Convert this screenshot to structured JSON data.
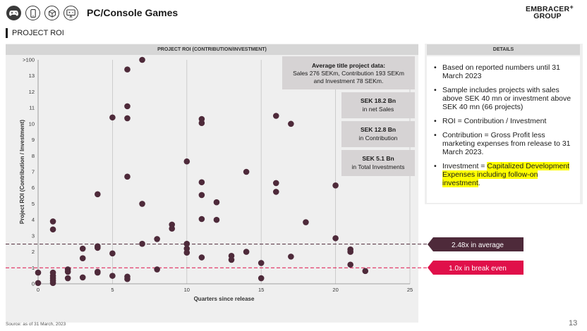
{
  "header": {
    "title": "PC/Console Games",
    "icons": [
      "gamepad-icon",
      "mobile-icon",
      "cube-icon",
      "monitor-icon"
    ],
    "logo_line1": "EMBRACER",
    "logo_line2": "GROUP",
    "logo_mark": "+"
  },
  "section": {
    "title": "PROJECT ROI"
  },
  "chart_header": "PROJECT ROI (CONTRIBUTION/INVESTMENT)",
  "details": {
    "header": "DETAILS",
    "bullets": [
      "Based on reported numbers until 31 March 2023",
      "Sample includes projects with sales above SEK 40 mn or investment above SEK 40 mn (66 projects)",
      "ROI = Contribution / Investment",
      "Contribution = Gross Profit less marketing expenses from release to 31 March 2023."
    ],
    "investment_prefix": "Investment = ",
    "investment_highlight": "Capitalized Development Expenses including follow-on investment",
    "investment_suffix": "."
  },
  "annotations": {
    "average_box": {
      "title": "Average title project data:",
      "line1": "Sales 276 SEKm, Contribution 193 SEKm",
      "line2": "and Investment 78 SEKm."
    },
    "sales_box": {
      "value": "SEK 18.2 Bn",
      "label": "in net Sales"
    },
    "contribution_box": {
      "value": "SEK 12.8 Bn",
      "label": "in Contribution"
    },
    "investment_box": {
      "value": "SEK 5.1 Bn",
      "label": "in Total Investments"
    },
    "average_label": "2.48x in average",
    "breakeven_label": "1.0x in break even"
  },
  "colors": {
    "dot": "#4e2a3a",
    "average_line": "#4e2a3a",
    "breakeven_line": "#e0104a",
    "average_tag": "#4e2a3a",
    "breakeven_tag": "#e0104a",
    "info_box": "#d6d3d4"
  },
  "chart_data": {
    "type": "scatter",
    "title": "PROJECT ROI (CONTRIBUTION/INVESTMENT)",
    "xlabel": "Quarters since release",
    "ylabel": "Project ROI (Contribution / Investment)",
    "xlim": [
      0,
      25
    ],
    "ylim": [
      0,
      14
    ],
    "x_ticks": [
      0,
      5,
      10,
      15,
      20,
      25
    ],
    "y_ticks": [
      0,
      1,
      2,
      3,
      4,
      5,
      6,
      7,
      8,
      9,
      10,
      11,
      12,
      13,
      14
    ],
    "y_tick_labels": [
      "0",
      "1",
      "2",
      "3",
      "4",
      "5",
      "6",
      "7",
      "8",
      "9",
      "10",
      "11",
      "12",
      "13",
      ">100"
    ],
    "grid": "vertical",
    "reference_lines": [
      {
        "label": "2.48x in average",
        "y": 2.48
      },
      {
        "label": "1.0x in break even",
        "y": 1.0
      }
    ],
    "points": [
      [
        0,
        0.7
      ],
      [
        0,
        0.05
      ],
      [
        1,
        3.9
      ],
      [
        1,
        3.4
      ],
      [
        1,
        0.7
      ],
      [
        1,
        0.5
      ],
      [
        1,
        0.35
      ],
      [
        1,
        0.2
      ],
      [
        1,
        0.05
      ],
      [
        2,
        0.9
      ],
      [
        2,
        0.75
      ],
      [
        2,
        0.35
      ],
      [
        3,
        2.2
      ],
      [
        3,
        1.6
      ],
      [
        3,
        0.4
      ],
      [
        4,
        5.6
      ],
      [
        4,
        2.35
      ],
      [
        4,
        2.25
      ],
      [
        4,
        0.75
      ],
      [
        4,
        0.7
      ],
      [
        5,
        10.4
      ],
      [
        5,
        1.9
      ],
      [
        5,
        0.5
      ],
      [
        6,
        13.4
      ],
      [
        6,
        11.1
      ],
      [
        6,
        10.35
      ],
      [
        6,
        6.7
      ],
      [
        6,
        0.45
      ],
      [
        6,
        0.3
      ],
      [
        7,
        14
      ],
      [
        7,
        5.0
      ],
      [
        7,
        2.5
      ],
      [
        8,
        2.8
      ],
      [
        8,
        0.9
      ],
      [
        9,
        3.7
      ],
      [
        9,
        3.45
      ],
      [
        10,
        7.65
      ],
      [
        10,
        2.5
      ],
      [
        10,
        2.2
      ],
      [
        10,
        1.95
      ],
      [
        11,
        10.3
      ],
      [
        11,
        10.05
      ],
      [
        11,
        6.35
      ],
      [
        11,
        5.55
      ],
      [
        11,
        4.05
      ],
      [
        11,
        1.65
      ],
      [
        12,
        5.1
      ],
      [
        12,
        4.0
      ],
      [
        13,
        1.75
      ],
      [
        13,
        1.5
      ],
      [
        14,
        7.0
      ],
      [
        14,
        2.0
      ],
      [
        15,
        1.3
      ],
      [
        15,
        0.35
      ],
      [
        16,
        10.5
      ],
      [
        16,
        6.3
      ],
      [
        16,
        5.75
      ],
      [
        17,
        10.0
      ],
      [
        17,
        1.7
      ],
      [
        18,
        3.85
      ],
      [
        20,
        6.15
      ],
      [
        20,
        2.85
      ],
      [
        21,
        2.15
      ],
      [
        21,
        2.0
      ],
      [
        21,
        1.2
      ],
      [
        22,
        0.8
      ]
    ]
  },
  "footer": {
    "source": "Source: as of 31 March, 2023",
    "page_number": "13"
  }
}
